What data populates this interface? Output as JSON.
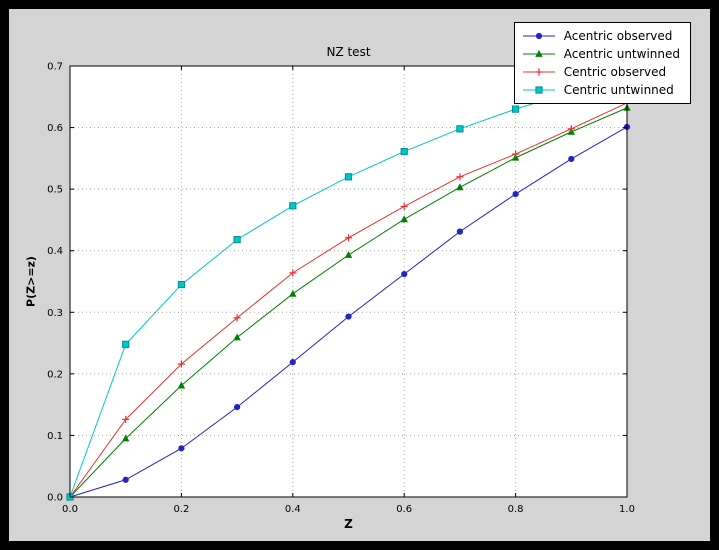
{
  "window": {
    "background": "#000000"
  },
  "figure": {
    "background": "#d4d4d4",
    "plot_background": "#ffffff",
    "axes_border": "#000000",
    "grid_color": "#a8a8a8"
  },
  "chart_data": {
    "type": "line",
    "title": "NZ test",
    "xlabel": "Z",
    "ylabel": "P(Z>=z)",
    "xlim": [
      0.0,
      1.0
    ],
    "ylim": [
      0.0,
      0.7
    ],
    "grid": "dotted",
    "legend_position": "upper right",
    "x": [
      0.0,
      0.1,
      0.2,
      0.3,
      0.4,
      0.5,
      0.6,
      0.7,
      0.8,
      0.9,
      1.0
    ],
    "x_ticks": [
      0.0,
      0.2,
      0.4,
      0.6,
      0.8,
      1.0
    ],
    "x_tick_labels": [
      "0.0",
      "0.2",
      "0.4",
      "0.6",
      "0.8",
      "1.0"
    ],
    "y_ticks": [
      0.0,
      0.1,
      0.2,
      0.3,
      0.4,
      0.5,
      0.6,
      0.7
    ],
    "y_tick_labels": [
      "0.0",
      "0.1",
      "0.2",
      "0.3",
      "0.4",
      "0.5",
      "0.6",
      "0.7"
    ],
    "series": [
      {
        "name": "Acentric observed",
        "color": "#2323c8",
        "marker": "circle",
        "values": [
          0.0,
          0.028,
          0.079,
          0.146,
          0.219,
          0.293,
          0.362,
          0.431,
          0.492,
          0.549,
          0.601
        ]
      },
      {
        "name": "Acentric untwinned",
        "color": "#008000",
        "marker": "triangle",
        "values": [
          0.0,
          0.095,
          0.181,
          0.259,
          0.33,
          0.393,
          0.451,
          0.503,
          0.551,
          0.593,
          0.632
        ]
      },
      {
        "name": "Centric observed",
        "color": "#e83030",
        "marker": "plus",
        "values": [
          0.0,
          0.126,
          0.216,
          0.291,
          0.364,
          0.421,
          0.472,
          0.52,
          0.557,
          0.598,
          0.64
        ]
      },
      {
        "name": "Centric untwinned",
        "color": "#00c8c8",
        "marker": "square",
        "marker_edge": "#008f8f",
        "values": [
          0.0,
          0.248,
          0.345,
          0.418,
          0.473,
          0.52,
          0.561,
          0.598,
          0.63,
          0.658,
          0.683
        ]
      }
    ]
  }
}
